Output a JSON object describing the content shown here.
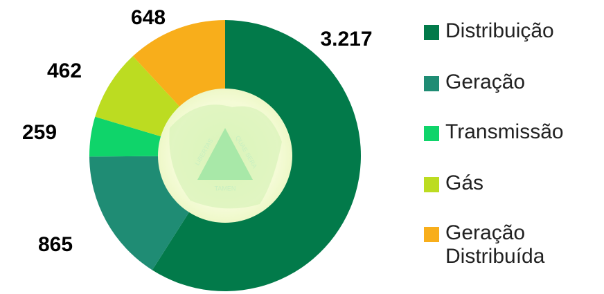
{
  "chart_data": {
    "type": "donut",
    "categories": [
      "Distribuição",
      "Geração",
      "Transmissão",
      "Gás",
      "Geração Distribuída"
    ],
    "values": [
      3217,
      865,
      259,
      462,
      648
    ],
    "value_labels": [
      "3.217",
      "865",
      "259",
      "462",
      "648"
    ],
    "colors": [
      "#027a4a",
      "#1f8c74",
      "#0fd46a",
      "#bcdc21",
      "#f8ae1b"
    ],
    "legend": "right",
    "annotations": [
      "LIBERTAS",
      "QUAE SERA",
      "TAMEN"
    ]
  }
}
